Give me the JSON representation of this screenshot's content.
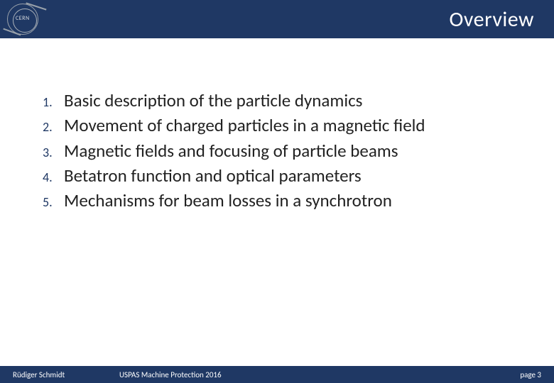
{
  "header": {
    "title": "Overview",
    "logo_text": "CERN",
    "bar_color": "#1f3864",
    "title_color": "#ffffff",
    "title_fontsize": 30
  },
  "body": {
    "text_color": "#222222",
    "number_color": "#1f3864",
    "item_fontsize": 25,
    "number_fontsize": 18,
    "items": [
      {
        "n": "1.",
        "text": "Basic description of the particle dynamics"
      },
      {
        "n": "2.",
        "text": "Movement of charged particles in a magnetic field"
      },
      {
        "n": "3.",
        "text": "Magnetic fields and focusing of particle beams"
      },
      {
        "n": "4.",
        "text": "Betatron function and optical parameters"
      },
      {
        "n": "5.",
        "text": "Mechanisms for beam losses in a synchrotron"
      }
    ]
  },
  "footer": {
    "author": "Rüdiger Schmidt",
    "conference": "USPAS Machine Protection 2016",
    "page": "page 3",
    "bar_color": "#1f3864",
    "text_color": "#ffffff",
    "fontsize": 11
  }
}
